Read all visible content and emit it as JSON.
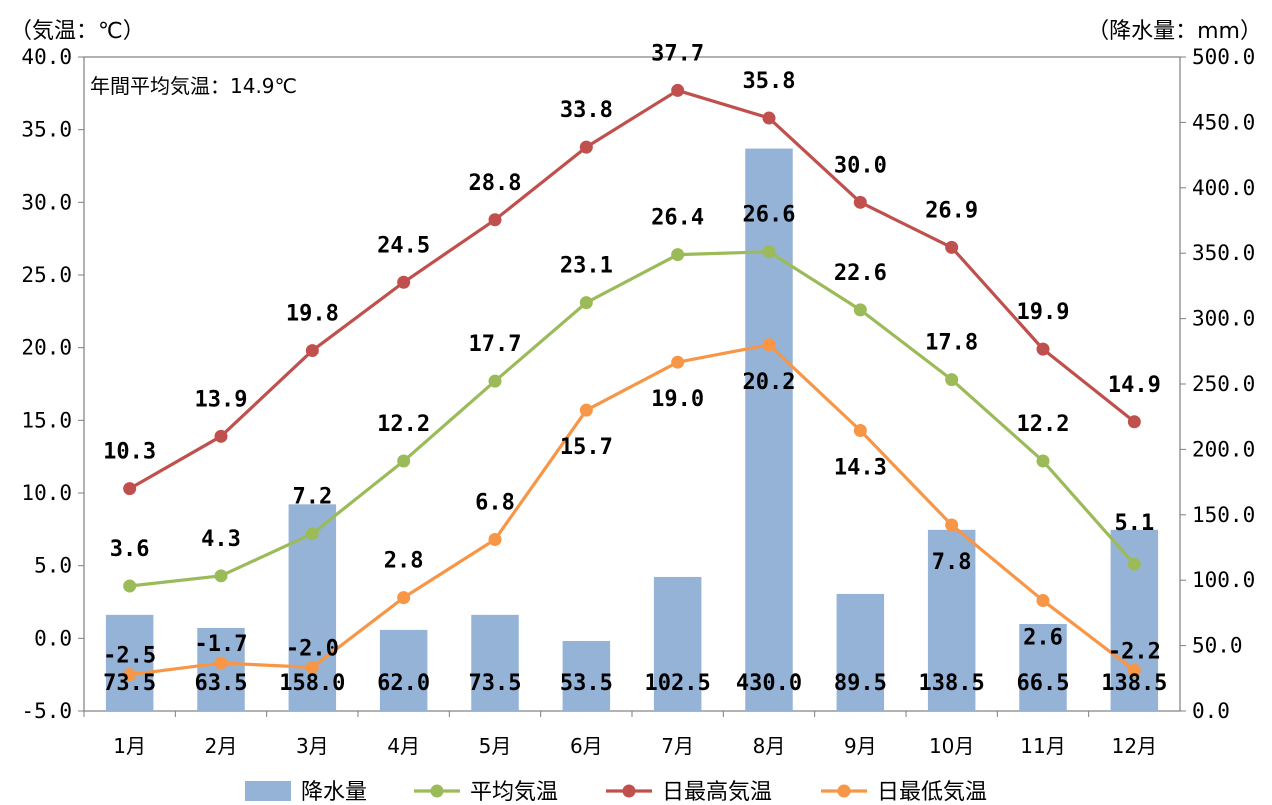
{
  "chart_data": {
    "type": "bar+line",
    "categories": [
      "1月",
      "2月",
      "3月",
      "4月",
      "5月",
      "6月",
      "7月",
      "8月",
      "9月",
      "10月",
      "11月",
      "12月"
    ],
    "left_axis": {
      "label": "（気温：℃）",
      "ylim": [
        -5.0,
        40.0
      ],
      "ticks": [
        "-5.0",
        "0.0",
        "5.0",
        "10.0",
        "15.0",
        "20.0",
        "25.0",
        "30.0",
        "35.0",
        "40.0"
      ]
    },
    "right_axis": {
      "label": "（降水量：mm）",
      "ylim": [
        0.0,
        500.0
      ],
      "ticks": [
        "0.0",
        "50.0",
        "100.0",
        "150.0",
        "200.0",
        "250.0",
        "300.0",
        "350.0",
        "400.0",
        "450.0",
        "500.0"
      ]
    },
    "annotation": "年間平均気温：14.9℃",
    "grid": false,
    "legend_position": "bottom",
    "series": [
      {
        "name": "降水量",
        "type": "bar",
        "axis": "right",
        "color": "#95b3d7",
        "values": [
          73.5,
          63.5,
          158.0,
          62.0,
          73.5,
          53.5,
          102.5,
          430.0,
          89.5,
          138.5,
          66.5,
          138.5
        ],
        "labels": [
          "73.5",
          "63.5",
          "158.0",
          "62.0",
          "73.5",
          "53.5",
          "102.5",
          "430.0",
          "89.5",
          "138.5",
          "66.5",
          "138.5"
        ]
      },
      {
        "name": "平均気温",
        "type": "line",
        "axis": "left",
        "color": "#9bbb59",
        "values": [
          3.6,
          4.3,
          7.2,
          12.2,
          17.7,
          23.1,
          26.4,
          26.6,
          22.6,
          17.8,
          12.2,
          5.1
        ],
        "labels": [
          "3.6",
          "4.3",
          "7.2",
          "12.2",
          "17.7",
          "23.1",
          "26.4",
          "26.6",
          "22.6",
          "17.8",
          "12.2",
          "5.1"
        ]
      },
      {
        "name": "日最高気温",
        "type": "line",
        "axis": "left",
        "color": "#c0504d",
        "values": [
          10.3,
          13.9,
          19.8,
          24.5,
          28.8,
          33.8,
          37.7,
          35.8,
          30.0,
          26.9,
          19.9,
          14.9
        ],
        "labels": [
          "10.3",
          "13.9",
          "19.8",
          "24.5",
          "28.8",
          "33.8",
          "37.7",
          "35.8",
          "30.0",
          "26.9",
          "19.9",
          "14.9"
        ]
      },
      {
        "name": "日最低気温",
        "type": "line",
        "axis": "left",
        "color": "#f79646",
        "values": [
          -2.5,
          -1.7,
          -2.0,
          2.8,
          6.8,
          15.7,
          19.0,
          20.2,
          14.3,
          7.8,
          2.6,
          -2.2
        ],
        "labels": [
          "-2.5",
          "-1.7",
          "-2.0",
          "2.8",
          "6.8",
          "15.7",
          "19.0",
          "20.2",
          "14.3",
          "7.8",
          "2.6",
          "-2.2"
        ]
      }
    ]
  }
}
